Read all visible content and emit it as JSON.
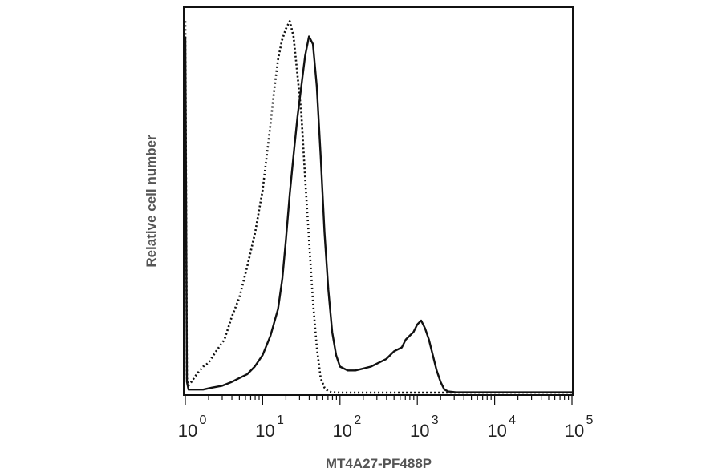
{
  "chart_data": {
    "type": "line",
    "title": "",
    "xlabel": "MT4A27-PF488P",
    "ylabel": "Relative cell number",
    "x_scale": "log",
    "xlim": [
      1,
      100000
    ],
    "ylim": [
      0,
      1
    ],
    "grid": false,
    "x_ticks": [
      {
        "base": "10",
        "exp": "0",
        "value": 1
      },
      {
        "base": "10",
        "exp": "1",
        "value": 10
      },
      {
        "base": "10",
        "exp": "2",
        "value": 100
      },
      {
        "base": "10",
        "exp": "3",
        "value": 1000
      },
      {
        "base": "10",
        "exp": "4",
        "value": 10000
      },
      {
        "base": "10",
        "exp": "5",
        "value": 100000
      }
    ],
    "series": [
      {
        "style": "dotted",
        "x": [
          1.0,
          1.05,
          1.1,
          1.2,
          1.4,
          1.7,
          2.0,
          2.5,
          3.2,
          4.0,
          5.0,
          6.3,
          8.0,
          10.0,
          12.6,
          14.1,
          15.8,
          17.8,
          20.0,
          22.4,
          25.1,
          28.2,
          31.6,
          35.5,
          39.8,
          44.7,
          50.1,
          56.2,
          63.1,
          70.8,
          79.4,
          100,
          1000,
          100000
        ],
        "y": [
          0.97,
          0.04,
          0.02,
          0.03,
          0.05,
          0.07,
          0.08,
          0.11,
          0.14,
          0.2,
          0.25,
          0.33,
          0.42,
          0.53,
          0.7,
          0.79,
          0.87,
          0.92,
          0.95,
          0.97,
          0.93,
          0.83,
          0.73,
          0.56,
          0.4,
          0.24,
          0.12,
          0.04,
          0.015,
          0.005,
          0.003,
          0.002,
          0.002,
          0.002
        ]
      },
      {
        "style": "solid",
        "x": [
          1.0,
          1.05,
          1.1,
          1.3,
          1.7,
          2.2,
          3.0,
          4.0,
          5.0,
          6.3,
          7.9,
          10.0,
          12.6,
          15.8,
          18.0,
          20.0,
          22.4,
          25.1,
          28.2,
          31.6,
          35.5,
          39.8,
          44.7,
          50.1,
          56.2,
          63.1,
          70.8,
          79.4,
          89.1,
          100,
          126,
          158,
          200,
          251,
          316,
          398,
          501,
          631,
          708,
          794,
          891,
          1000,
          1122,
          1259,
          1413,
          1585,
          1778,
          2000,
          2239,
          2512,
          3162,
          100000
        ],
        "y": [
          0.93,
          0.03,
          0.01,
          0.01,
          0.01,
          0.015,
          0.02,
          0.03,
          0.04,
          0.05,
          0.07,
          0.1,
          0.15,
          0.22,
          0.3,
          0.4,
          0.52,
          0.62,
          0.72,
          0.8,
          0.88,
          0.93,
          0.91,
          0.8,
          0.62,
          0.42,
          0.27,
          0.16,
          0.1,
          0.07,
          0.06,
          0.06,
          0.065,
          0.07,
          0.08,
          0.09,
          0.11,
          0.12,
          0.14,
          0.15,
          0.16,
          0.18,
          0.19,
          0.17,
          0.14,
          0.1,
          0.06,
          0.03,
          0.01,
          0.005,
          0.003,
          0.003
        ]
      }
    ]
  }
}
